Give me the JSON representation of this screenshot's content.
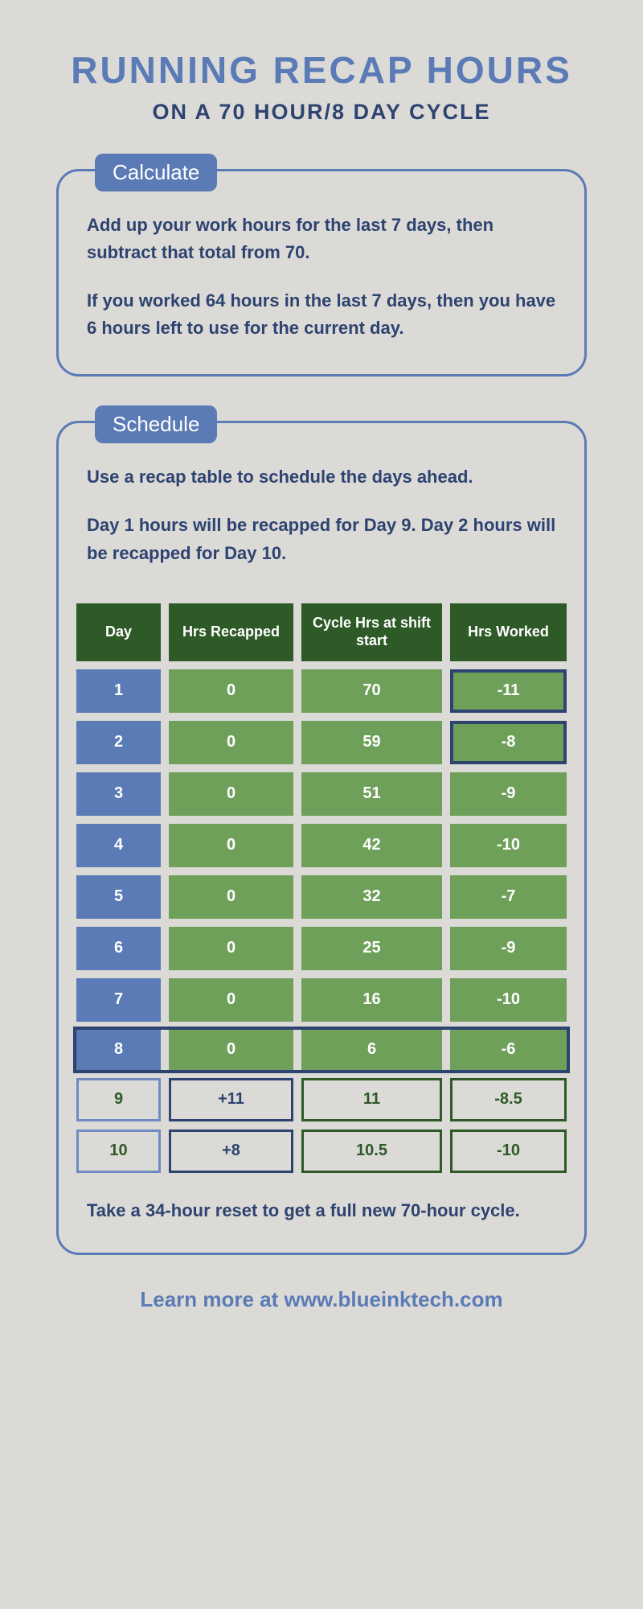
{
  "colors": {
    "bg": "#dcdad7",
    "blue_text": "#5a7bb5",
    "navy": "#2d4370",
    "border_blue": "#5a7bb5",
    "badge_blue": "#5a7bb5",
    "header_dark_green": "#2e5a27",
    "cell_green": "#6fa05a",
    "day_blue": "#5a7bb5",
    "outline_navy": "#2d4370",
    "outline_green_dark": "#2e5a27",
    "outline_blue_light": "#6f8cc2",
    "outline_text_green": "#2e5a27",
    "outline_text_navy": "#2d4370"
  },
  "title": {
    "main": "RUNNING RECAP HOURS",
    "main_fontsize": 46,
    "main_color": "#5a7bb5",
    "sub": "ON A 70 HOUR/8 DAY CYCLE",
    "sub_fontsize": 27,
    "sub_color": "#2d4370"
  },
  "calculate": {
    "badge": "Calculate",
    "p1": "Add up your work hours for the last 7 days, then subtract that total from 70.",
    "p2": "If you worked 64 hours in the last 7 days, then you have 6 hours left to use for the current day.",
    "text_color": "#2d4370",
    "fontsize": 22
  },
  "schedule": {
    "badge": "Schedule",
    "p1": "Use a recap table to schedule the days ahead.",
    "p2": "Day 1 hours will be recapped for Day 9. Day 2 hours will be recapped for Day 10.",
    "footer_para": "Take a 34-hour reset to get a full new 70-hour cycle.",
    "text_color": "#2d4370",
    "fontsize": 22
  },
  "table": {
    "headers": [
      "Day",
      "Hrs Recapped",
      "Cycle Hrs at shift start",
      "Hrs Worked"
    ],
    "rows": [
      {
        "day": "1",
        "recap": "0",
        "cycle": "70",
        "worked": "-11",
        "worked_boxed": true
      },
      {
        "day": "2",
        "recap": "0",
        "cycle": "59",
        "worked": "-8",
        "worked_boxed": true
      },
      {
        "day": "3",
        "recap": "0",
        "cycle": "51",
        "worked": "-9"
      },
      {
        "day": "4",
        "recap": "0",
        "cycle": "42",
        "worked": "-10"
      },
      {
        "day": "5",
        "recap": "0",
        "cycle": "32",
        "worked": "-7"
      },
      {
        "day": "6",
        "recap": "0",
        "cycle": "25",
        "worked": "-9"
      },
      {
        "day": "7",
        "recap": "0",
        "cycle": "16",
        "worked": "-10"
      }
    ],
    "row8": {
      "day": "8",
      "recap": "0",
      "cycle": "6",
      "worked": "-6"
    },
    "outline_rows": [
      {
        "day": "9",
        "recap": "+11",
        "cycle": "11",
        "worked": "-8.5",
        "day_border": "#6f8cc2",
        "recap_border": "#2d4370",
        "cycle_border": "#2e5a27",
        "worked_border": "#2e5a27",
        "day_color": "#2e5a27",
        "recap_color": "#2d4370",
        "cycle_color": "#2e5a27",
        "worked_color": "#2e5a27"
      },
      {
        "day": "10",
        "recap": "+8",
        "cycle": "10.5",
        "worked": "-10",
        "day_border": "#6f8cc2",
        "recap_border": "#2d4370",
        "cycle_border": "#2e5a27",
        "worked_border": "#2e5a27",
        "day_color": "#2e5a27",
        "recap_color": "#2d4370",
        "cycle_color": "#2e5a27",
        "worked_color": "#2e5a27"
      }
    ]
  },
  "footer": {
    "text": "Learn more at www.blueinktech.com",
    "color": "#5a7bb5",
    "fontsize": 26
  }
}
